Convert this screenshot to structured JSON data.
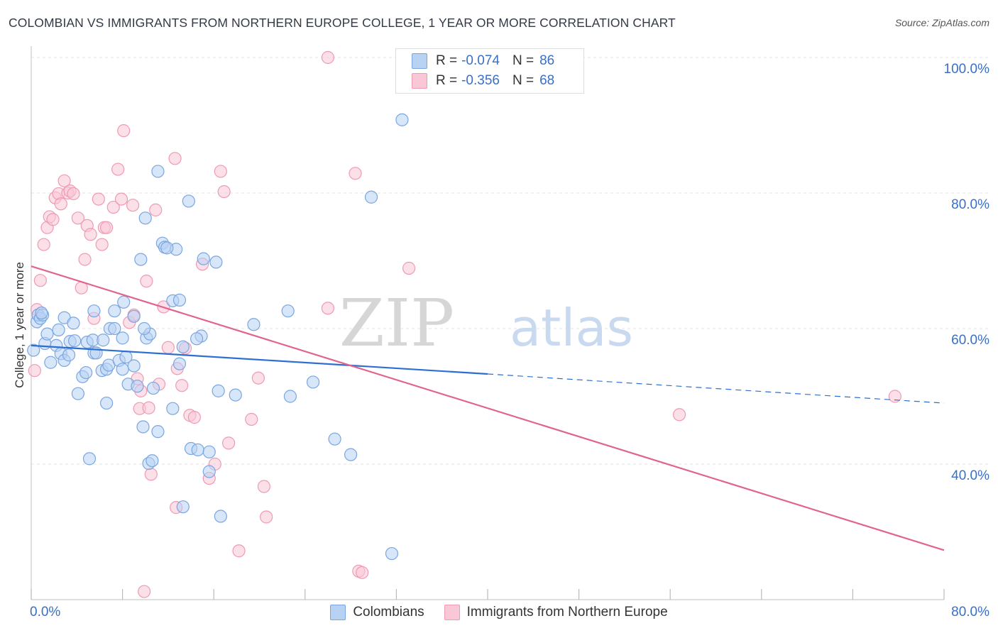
{
  "title": "COLOMBIAN VS IMMIGRANTS FROM NORTHERN EUROPE COLLEGE, 1 YEAR OR MORE CORRELATION CHART",
  "source": "Source: ZipAtlas.com",
  "watermark": {
    "zip": "ZIP",
    "atlas": "atlas"
  },
  "legend": {
    "r_label": "R =",
    "n_label": "N =",
    "rows": [
      {
        "r": "-0.074",
        "n": "86",
        "fill": "#b8d2f4",
        "stroke": "#7aa6e0"
      },
      {
        "r": "-0.356",
        "n": "68",
        "fill": "#f9c7d6",
        "stroke": "#ee9ab5"
      }
    ]
  },
  "bottom_legend": [
    "Colombians",
    "Immigrants from Northern Europe"
  ],
  "x_tick_labels": {
    "min": "0.0%",
    "max": "80.0%"
  },
  "y_tick_labels": [
    "100.0%",
    "80.0%",
    "60.0%",
    "40.0%"
  ],
  "y_axis_title": "College, 1 year or more",
  "colors": {
    "blue_fill": "#b8d2f4",
    "blue_stroke": "#7aa6e0",
    "blue_line": "#2d6fd1",
    "pink_fill": "#f9c7d6",
    "pink_stroke": "#ee9ab5",
    "pink_line": "#e0648f",
    "accent_text": "#3a6fc4",
    "grid": "#e3e3e3"
  },
  "chart_data": {
    "type": "scatter",
    "title": "COLOMBIAN VS IMMIGRANTS FROM NORTHERN EUROPE COLLEGE, 1 YEAR OR MORE CORRELATION CHART",
    "xlabel": "",
    "ylabel": "College, 1 year or more",
    "xlim": [
      0,
      80
    ],
    "ylim": [
      19,
      101
    ],
    "x_ticks": [
      0,
      8,
      16,
      24,
      32,
      40,
      48,
      56,
      64,
      72,
      80
    ],
    "y_gridlines": [
      40,
      60,
      80,
      100
    ],
    "series": [
      {
        "name": "Colombians",
        "r": -0.074,
        "n": 86,
        "trend": {
          "x": [
            0,
            40
          ],
          "y": [
            57.5,
            53.3
          ],
          "dashed_to": [
            80,
            49.0
          ]
        },
        "points": [
          [
            0.2,
            56.8
          ],
          [
            0.5,
            61.0
          ],
          [
            0.6,
            62.0
          ],
          [
            0.8,
            61.5
          ],
          [
            1.0,
            62.0
          ],
          [
            1.2,
            57.8
          ],
          [
            1.4,
            59.2
          ],
          [
            1.7,
            55.0
          ],
          [
            2.2,
            57.5
          ],
          [
            2.4,
            59.8
          ],
          [
            2.6,
            56.3
          ],
          [
            2.9,
            61.6
          ],
          [
            2.9,
            55.3
          ],
          [
            3.3,
            56.1
          ],
          [
            3.4,
            58.1
          ],
          [
            3.7,
            60.8
          ],
          [
            4.1,
            50.4
          ],
          [
            4.5,
            52.9
          ],
          [
            4.8,
            53.5
          ],
          [
            4.9,
            58.0
          ],
          [
            5.1,
            40.8
          ],
          [
            5.4,
            58.3
          ],
          [
            5.5,
            56.4
          ],
          [
            5.7,
            56.4
          ],
          [
            5.5,
            62.6
          ],
          [
            6.2,
            53.8
          ],
          [
            6.3,
            58.3
          ],
          [
            6.6,
            49.0
          ],
          [
            6.6,
            54.0
          ],
          [
            6.8,
            54.6
          ],
          [
            6.9,
            60.0
          ],
          [
            7.3,
            60.0
          ],
          [
            7.3,
            62.6
          ],
          [
            7.7,
            55.3
          ],
          [
            8.0,
            58.6
          ],
          [
            8.1,
            63.9
          ],
          [
            8.3,
            55.8
          ],
          [
            8.5,
            51.8
          ],
          [
            9.0,
            54.5
          ],
          [
            9.0,
            61.8
          ],
          [
            9.3,
            51.5
          ],
          [
            9.6,
            70.2
          ],
          [
            9.8,
            45.5
          ],
          [
            10.0,
            76.3
          ],
          [
            10.1,
            58.6
          ],
          [
            10.3,
            40.1
          ],
          [
            10.4,
            59.2
          ],
          [
            10.6,
            40.5
          ],
          [
            10.7,
            51.2
          ],
          [
            11.1,
            44.8
          ],
          [
            11.1,
            83.2
          ],
          [
            11.5,
            72.6
          ],
          [
            11.7,
            72.0
          ],
          [
            12.4,
            64.1
          ],
          [
            12.4,
            48.2
          ],
          [
            12.7,
            71.7
          ],
          [
            13.0,
            64.2
          ],
          [
            13.0,
            54.8
          ],
          [
            13.3,
            33.7
          ],
          [
            13.3,
            57.3
          ],
          [
            13.8,
            78.8
          ],
          [
            14.0,
            42.3
          ],
          [
            14.6,
            42.1
          ],
          [
            14.9,
            58.9
          ],
          [
            15.1,
            70.3
          ],
          [
            15.6,
            41.8
          ],
          [
            15.6,
            38.9
          ],
          [
            16.2,
            69.8
          ],
          [
            16.4,
            50.8
          ],
          [
            16.6,
            32.3
          ],
          [
            17.9,
            50.2
          ],
          [
            19.5,
            60.6
          ],
          [
            22.5,
            62.6
          ],
          [
            22.7,
            50.0
          ],
          [
            24.7,
            52.1
          ],
          [
            26.6,
            43.7
          ],
          [
            28.0,
            41.4
          ],
          [
            29.8,
            79.4
          ],
          [
            31.6,
            26.8
          ],
          [
            32.5,
            90.8
          ],
          [
            0.9,
            62.3
          ],
          [
            3.8,
            58.2
          ],
          [
            11.9,
            71.9
          ],
          [
            9.9,
            60.0
          ],
          [
            8.0,
            54.0
          ],
          [
            14.5,
            58.5
          ]
        ]
      },
      {
        "name": "Immigrants from Northern Europe",
        "r": -0.356,
        "n": 68,
        "trend": {
          "x": [
            0,
            80
          ],
          "y": [
            69.2,
            27.3
          ]
        },
        "points": [
          [
            0.3,
            53.8
          ],
          [
            0.5,
            62.8
          ],
          [
            0.8,
            67.1
          ],
          [
            1.1,
            72.4
          ],
          [
            1.4,
            74.9
          ],
          [
            1.6,
            76.5
          ],
          [
            1.9,
            76.1
          ],
          [
            2.1,
            79.3
          ],
          [
            2.4,
            79.9
          ],
          [
            2.6,
            78.4
          ],
          [
            2.9,
            81.8
          ],
          [
            3.2,
            80.0
          ],
          [
            3.4,
            80.3
          ],
          [
            3.7,
            79.9
          ],
          [
            4.1,
            76.3
          ],
          [
            4.4,
            66.0
          ],
          [
            4.7,
            70.2
          ],
          [
            4.9,
            75.2
          ],
          [
            5.2,
            73.9
          ],
          [
            5.5,
            61.5
          ],
          [
            5.9,
            79.1
          ],
          [
            6.2,
            72.4
          ],
          [
            6.4,
            74.9
          ],
          [
            6.6,
            74.9
          ],
          [
            7.2,
            77.9
          ],
          [
            7.6,
            83.5
          ],
          [
            7.9,
            79.1
          ],
          [
            8.1,
            89.2
          ],
          [
            8.6,
            60.9
          ],
          [
            8.9,
            78.2
          ],
          [
            9.0,
            62.0
          ],
          [
            9.3,
            52.6
          ],
          [
            9.5,
            48.2
          ],
          [
            9.6,
            50.8
          ],
          [
            9.9,
            21.2
          ],
          [
            10.1,
            67.0
          ],
          [
            10.3,
            48.3
          ],
          [
            10.5,
            38.5
          ],
          [
            10.9,
            77.5
          ],
          [
            11.2,
            51.8
          ],
          [
            11.6,
            63.2
          ],
          [
            12.0,
            57.2
          ],
          [
            12.6,
            85.1
          ],
          [
            12.7,
            33.6
          ],
          [
            12.8,
            54.1
          ],
          [
            13.2,
            51.6
          ],
          [
            13.5,
            57.1
          ],
          [
            13.9,
            47.2
          ],
          [
            14.3,
            46.9
          ],
          [
            15.0,
            69.5
          ],
          [
            15.6,
            37.9
          ],
          [
            16.1,
            40.0
          ],
          [
            16.6,
            83.2
          ],
          [
            16.9,
            80.2
          ],
          [
            17.3,
            43.1
          ],
          [
            18.2,
            27.2
          ],
          [
            19.3,
            46.6
          ],
          [
            19.9,
            52.7
          ],
          [
            20.4,
            36.7
          ],
          [
            20.6,
            32.2
          ],
          [
            26.0,
            63.0
          ],
          [
            26.0,
            100.0
          ],
          [
            28.4,
            82.9
          ],
          [
            28.7,
            24.2
          ],
          [
            29.0,
            24.0
          ],
          [
            33.1,
            68.9
          ],
          [
            56.8,
            47.3
          ],
          [
            75.7,
            50.0
          ]
        ]
      }
    ]
  }
}
